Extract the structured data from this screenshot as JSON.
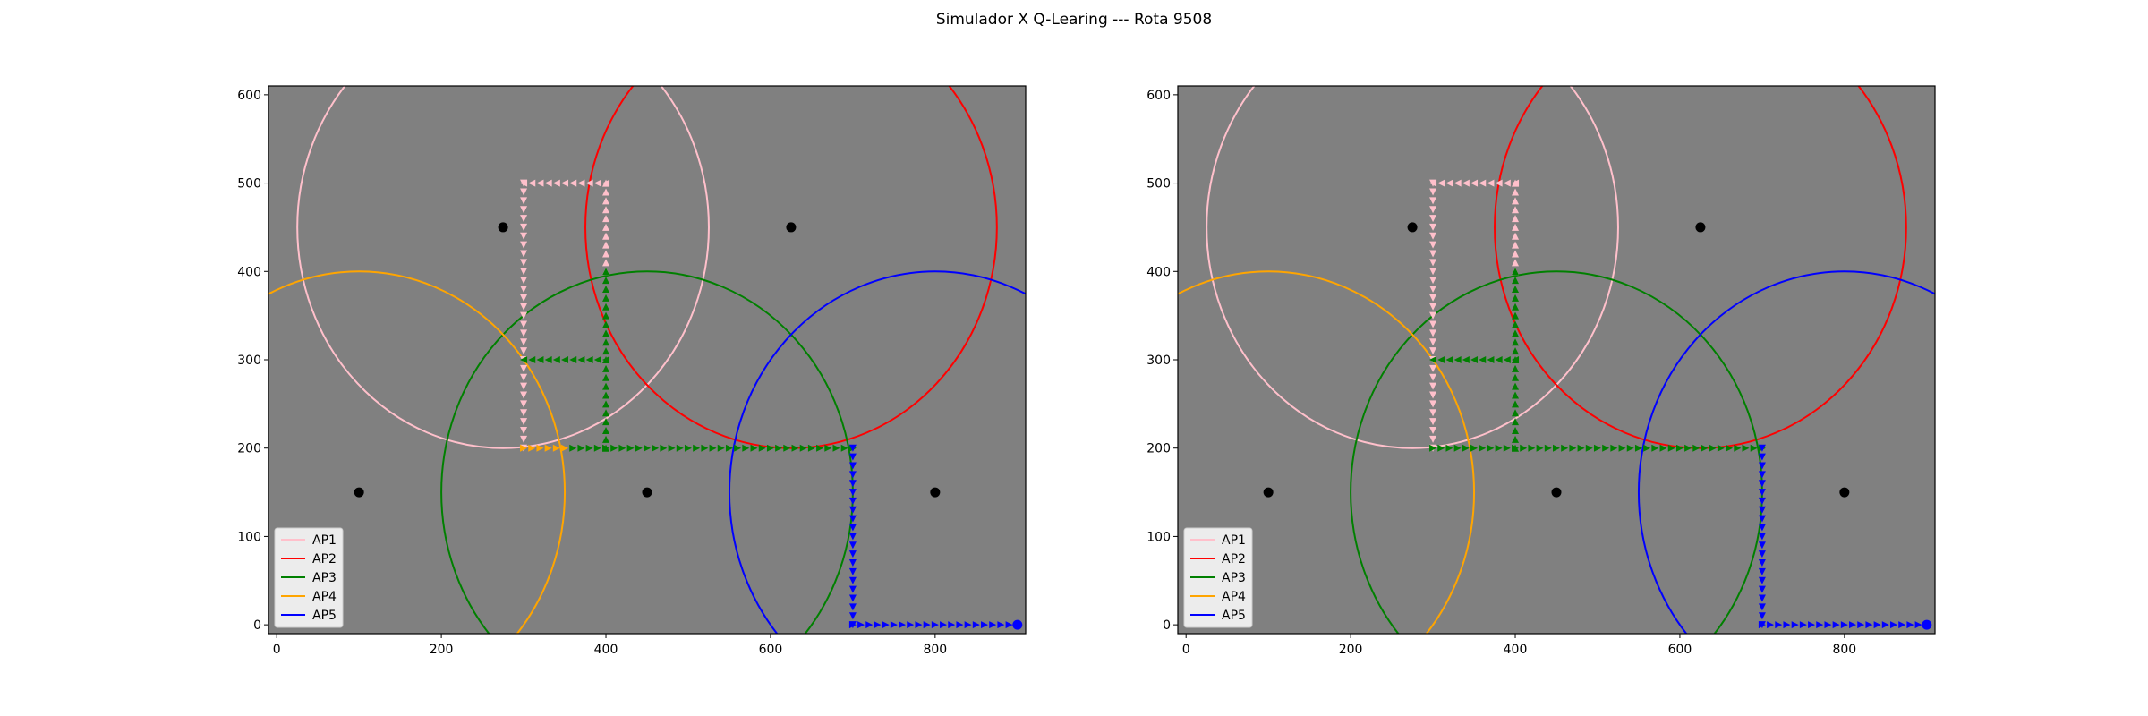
{
  "figure": {
    "title": "Simulador X Q-Learing --- Rota 9508",
    "background": "#ffffff",
    "plot_background": "#808080"
  },
  "chart_data": [
    {
      "type": "scatter",
      "panel": "left",
      "xlim": [
        -10,
        910
      ],
      "ylim": [
        -10,
        610
      ],
      "xticks": [
        "0",
        "200",
        "400",
        "600",
        "800"
      ],
      "yticks": [
        "0",
        "100",
        "200",
        "300",
        "400",
        "500",
        "600"
      ],
      "grid": false,
      "legend_position": "lower left",
      "legend": [
        "AP1",
        "AP2",
        "AP3",
        "AP4",
        "AP5"
      ],
      "access_points": [
        {
          "name": "AP1",
          "color": "#ffc0cb",
          "center": [
            275,
            450
          ],
          "radius": 250
        },
        {
          "name": "AP2",
          "color": "#ff0000",
          "center": [
            625,
            450
          ],
          "radius": 250
        },
        {
          "name": "AP3",
          "color": "#008000",
          "center": [
            450,
            150
          ],
          "radius": 250
        },
        {
          "name": "AP4",
          "color": "#ffa500",
          "center": [
            100,
            150
          ],
          "radius": 250
        },
        {
          "name": "AP5",
          "color": "#0000ff",
          "center": [
            800,
            150
          ],
          "radius": 250
        }
      ],
      "points": [
        [
          100,
          150
        ],
        [
          275,
          450
        ],
        [
          450,
          150
        ],
        [
          625,
          450
        ],
        [
          800,
          150
        ]
      ],
      "route": [
        {
          "color": "#ffc0cb",
          "dir": "left",
          "from": [
            400,
            500
          ],
          "to": [
            300,
            500
          ],
          "step": 10
        },
        {
          "color": "#ffc0cb",
          "dir": "down",
          "from": [
            300,
            500
          ],
          "to": [
            300,
            200
          ],
          "step": 10
        },
        {
          "color": "#ffa500",
          "dir": "right",
          "from": [
            300,
            200
          ],
          "to": [
            350,
            200
          ],
          "step": 10
        },
        {
          "color": "#ffc0cb",
          "dir": "up",
          "from": [
            400,
            400
          ],
          "to": [
            400,
            500
          ],
          "step": 10
        },
        {
          "color": "#008000",
          "dir": "up",
          "from": [
            400,
            200
          ],
          "to": [
            400,
            400
          ],
          "step": 10
        },
        {
          "color": "#008000",
          "dir": "left",
          "from": [
            400,
            300
          ],
          "to": [
            300,
            300
          ],
          "step": 10
        },
        {
          "color": "#008000",
          "dir": "right",
          "from": [
            360,
            200
          ],
          "to": [
            700,
            200
          ],
          "step": 10
        },
        {
          "color": "#0000ff",
          "dir": "down",
          "from": [
            700,
            200
          ],
          "to": [
            700,
            0
          ],
          "step": 10
        },
        {
          "color": "#0000ff",
          "dir": "right",
          "from": [
            700,
            0
          ],
          "to": [
            900,
            0
          ],
          "step": 10
        }
      ],
      "end_point": {
        "color": "#0000ff",
        "xy": [
          900,
          0
        ]
      }
    },
    {
      "type": "scatter",
      "panel": "right",
      "xlim": [
        -10,
        910
      ],
      "ylim": [
        -10,
        610
      ],
      "xticks": [
        "0",
        "200",
        "400",
        "600",
        "800"
      ],
      "yticks": [
        "0",
        "100",
        "200",
        "300",
        "400",
        "500",
        "600"
      ],
      "grid": false,
      "legend_position": "lower left",
      "legend": [
        "AP1",
        "AP2",
        "AP3",
        "AP4",
        "AP5"
      ],
      "access_points": [
        {
          "name": "AP1",
          "color": "#ffc0cb",
          "center": [
            275,
            450
          ],
          "radius": 250
        },
        {
          "name": "AP2",
          "color": "#ff0000",
          "center": [
            625,
            450
          ],
          "radius": 250
        },
        {
          "name": "AP3",
          "color": "#008000",
          "center": [
            450,
            150
          ],
          "radius": 250
        },
        {
          "name": "AP4",
          "color": "#ffa500",
          "center": [
            100,
            150
          ],
          "radius": 250
        },
        {
          "name": "AP5",
          "color": "#0000ff",
          "center": [
            800,
            150
          ],
          "radius": 250
        }
      ],
      "points": [
        [
          100,
          150
        ],
        [
          275,
          450
        ],
        [
          450,
          150
        ],
        [
          625,
          450
        ],
        [
          800,
          150
        ]
      ],
      "route": [
        {
          "color": "#ffc0cb",
          "dir": "left",
          "from": [
            400,
            500
          ],
          "to": [
            300,
            500
          ],
          "step": 10
        },
        {
          "color": "#ffc0cb",
          "dir": "down",
          "from": [
            300,
            500
          ],
          "to": [
            300,
            200
          ],
          "step": 10
        },
        {
          "color": "#ffc0cb",
          "dir": "up",
          "from": [
            400,
            400
          ],
          "to": [
            400,
            500
          ],
          "step": 10
        },
        {
          "color": "#008000",
          "dir": "up",
          "from": [
            400,
            200
          ],
          "to": [
            400,
            400
          ],
          "step": 10
        },
        {
          "color": "#008000",
          "dir": "left",
          "from": [
            400,
            300
          ],
          "to": [
            300,
            300
          ],
          "step": 10
        },
        {
          "color": "#008000",
          "dir": "right",
          "from": [
            300,
            200
          ],
          "to": [
            700,
            200
          ],
          "step": 10
        },
        {
          "color": "#0000ff",
          "dir": "down",
          "from": [
            700,
            200
          ],
          "to": [
            700,
            0
          ],
          "step": 10
        },
        {
          "color": "#0000ff",
          "dir": "right",
          "from": [
            700,
            0
          ],
          "to": [
            900,
            0
          ],
          "step": 10
        }
      ],
      "end_point": {
        "color": "#0000ff",
        "xy": [
          900,
          0
        ]
      }
    }
  ]
}
